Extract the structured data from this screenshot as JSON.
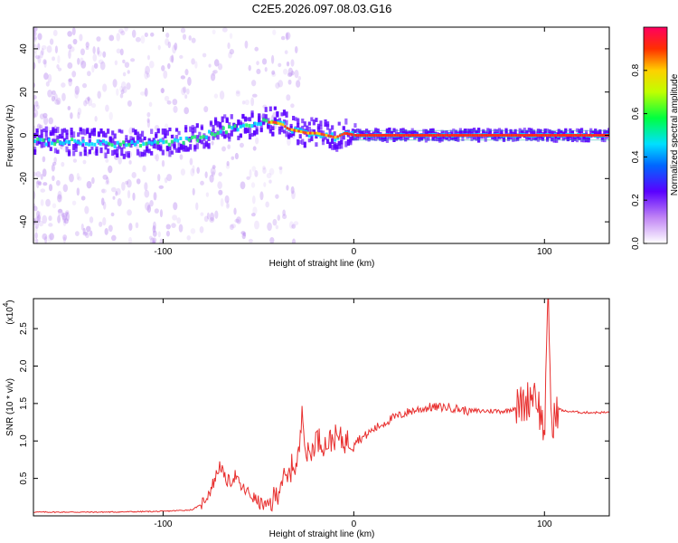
{
  "title": "C2E5.2026.097.08.03.G16",
  "chart_data": [
    {
      "type": "heatmap",
      "name": "spectrogram",
      "xlabel": "Height of straight line (km)",
      "ylabel": "Frequency (Hz)",
      "xlim": [
        -168,
        134
      ],
      "ylim": [
        -50,
        50
      ],
      "xticks": [
        -100,
        0,
        100
      ],
      "xtick_labels": [
        "-100",
        "0",
        "100"
      ],
      "yticks": [
        -40,
        -20,
        0,
        20,
        40
      ],
      "ytick_labels": [
        "-40",
        "-20",
        "0",
        "20",
        "40"
      ],
      "ridge": {
        "x": [
          -168,
          -150,
          -130,
          -110,
          -95,
          -85,
          -75,
          -65,
          -55,
          -48,
          -42,
          -38,
          -35,
          -30,
          -25,
          -20,
          -15,
          -10,
          -5,
          0,
          20,
          50,
          80,
          100,
          134
        ],
        "y": [
          -3,
          -3,
          -4,
          -4,
          -3,
          -2,
          1,
          3,
          5,
          6,
          6,
          5,
          3,
          2,
          1,
          1,
          0,
          -1,
          1,
          0,
          0,
          0,
          0,
          0,
          0
        ]
      },
      "colorbar": {
        "label": "Normalized spectral amplitude",
        "range": [
          0.0,
          1.0
        ],
        "ticks": [
          0.0,
          0.2,
          0.4,
          0.6,
          0.8
        ],
        "tick_labels": [
          "0.0",
          "0.2",
          "0.4",
          "0.6",
          "0.8"
        ]
      }
    },
    {
      "type": "line",
      "name": "snr",
      "xlabel": "Height of straight line (km)",
      "ylabel": "SNR (10 * v/v)",
      "exponent_label": "(x10",
      "exponent_power": "4",
      "exponent_close": ")",
      "xlim": [
        -168,
        134
      ],
      "ylim": [
        0,
        2.9
      ],
      "xticks": [
        -100,
        0,
        100
      ],
      "xtick_labels": [
        "-100",
        "0",
        "100"
      ],
      "yticks": [
        0.5,
        1.0,
        1.5,
        2.0,
        2.5
      ],
      "ytick_labels": [
        "0.5",
        "1.0",
        "1.5",
        "2.0",
        "2.5"
      ],
      "color": "#e8302f",
      "series": [
        {
          "name": "SNR",
          "x": [
            -168,
            -130,
            -100,
            -85,
            -80,
            -75,
            -72,
            -70,
            -68,
            -65,
            -62,
            -60,
            -55,
            -50,
            -45,
            -40,
            -38,
            -35,
            -32,
            -30,
            -28,
            -27,
            -25,
            -22,
            -20,
            -15,
            -10,
            -5,
            0,
            5,
            10,
            20,
            30,
            40,
            50,
            60,
            70,
            80,
            85,
            90,
            95,
            100,
            102,
            104,
            106,
            110,
            120,
            134
          ],
          "y": [
            0.05,
            0.05,
            0.06,
            0.08,
            0.15,
            0.35,
            0.55,
            0.7,
            0.5,
            0.45,
            0.55,
            0.4,
            0.3,
            0.18,
            0.12,
            0.3,
            0.5,
            0.45,
            0.7,
            0.65,
            1.0,
            1.55,
            0.8,
            0.85,
            1.05,
            0.95,
            1.05,
            1.0,
            1.0,
            1.05,
            1.15,
            1.3,
            1.4,
            1.45,
            1.45,
            1.4,
            1.4,
            1.4,
            1.45,
            1.5,
            1.7,
            1.1,
            2.9,
            1.0,
            1.45,
            1.4,
            1.38,
            1.38
          ]
        }
      ]
    }
  ]
}
